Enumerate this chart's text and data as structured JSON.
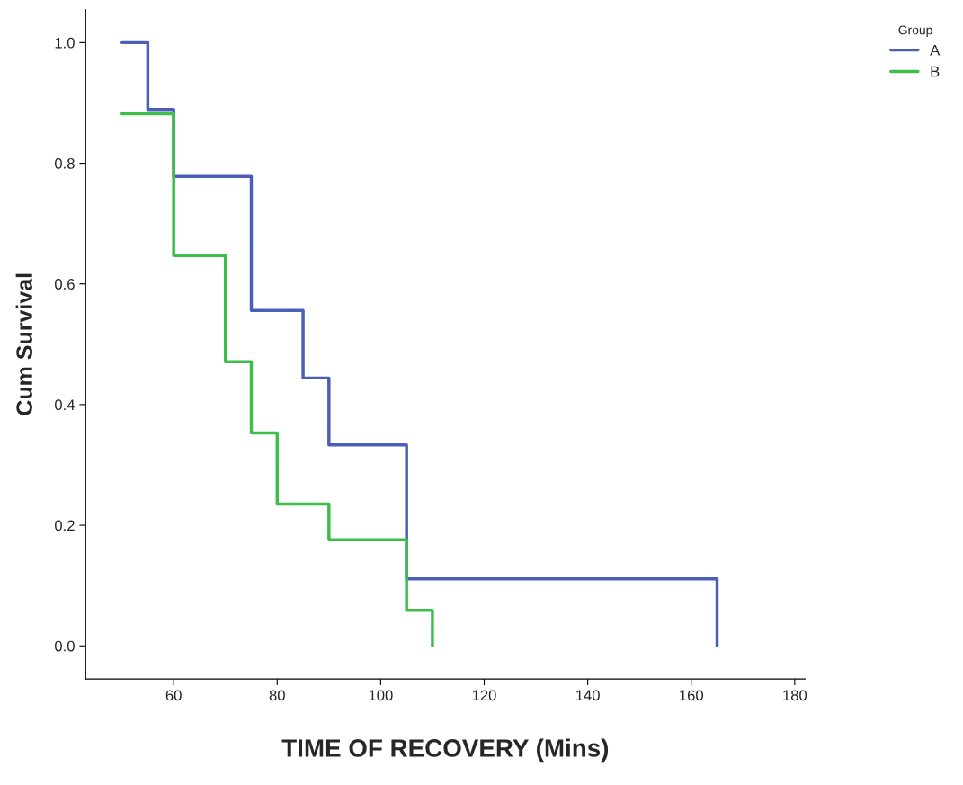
{
  "chart_data": {
    "type": "step",
    "xlabel": "TIME OF RECOVERY (Mins)",
    "ylabel": "Cum Survival",
    "legend_title": "Group",
    "legend": "top right",
    "series": [
      {
        "name": "A",
        "color": "#4a5fb5",
        "x": [
          50,
          55,
          60,
          75,
          85,
          90,
          105,
          165
        ],
        "values": [
          1.0,
          0.889,
          0.778,
          0.556,
          0.444,
          0.333,
          0.111,
          0.0
        ]
      },
      {
        "name": "B",
        "color": "#3dbe4a",
        "x": [
          50,
          60,
          70,
          75,
          80,
          90,
          105,
          110
        ],
        "values": [
          0.882,
          0.647,
          0.471,
          0.353,
          0.235,
          0.176,
          0.059,
          0.0
        ]
      }
    ],
    "xlim": [
      43,
      182
    ],
    "ylim": [
      -0.055,
      1.055
    ],
    "xticks": [
      60,
      80,
      100,
      120,
      140,
      160,
      180
    ],
    "yticks": [
      {
        "value": 0,
        "label": "0.0"
      },
      {
        "value": 0.2,
        "label": "0.2"
      },
      {
        "value": 0.4,
        "label": "0.4"
      },
      {
        "value": 0.6,
        "label": "0.6"
      },
      {
        "value": 0.8,
        "label": "0.8"
      },
      {
        "value": 1.0,
        "label": "1.0"
      }
    ],
    "grid": false
  }
}
